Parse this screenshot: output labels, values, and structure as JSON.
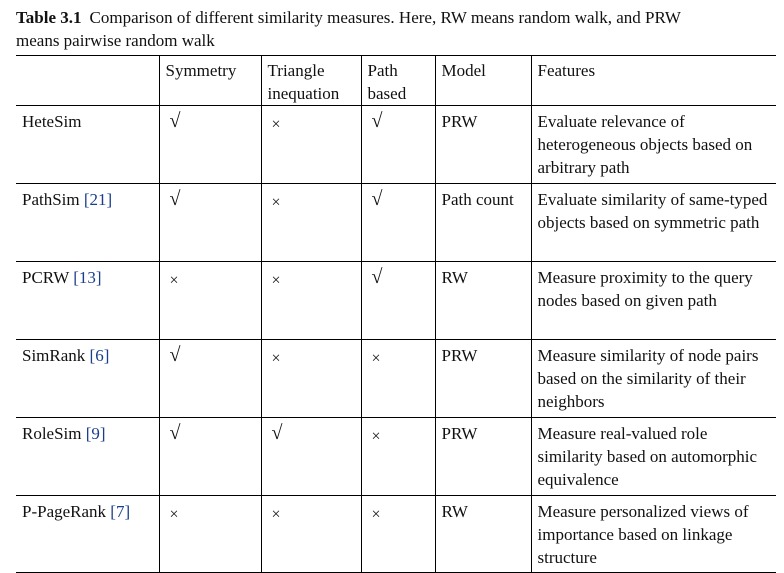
{
  "caption": {
    "label": "Table 3.1",
    "text_line1": "Comparison of different similarity measures. Here, RW means random walk, and PRW",
    "text_line2": "means pairwise random walk"
  },
  "table": {
    "headers": [
      "",
      "Symmetry",
      "Triangle inequation",
      "Path based",
      "Model",
      "Features"
    ],
    "rows": [
      {
        "name": "HeteSim",
        "ref": "",
        "symmetry": "√",
        "triangle": "×",
        "path": "√",
        "model": "PRW",
        "features": "Evaluate relevance of heterogeneous objects based on arbitrary path"
      },
      {
        "name": "PathSim ",
        "ref": "[21]",
        "symmetry": "√",
        "triangle": "×",
        "path": "√",
        "model": "Path count",
        "features": "Evaluate similarity of same-typed objects based on symmetric path"
      },
      {
        "name": "PCRW ",
        "ref": "[13]",
        "symmetry": "×",
        "triangle": "×",
        "path": "√",
        "model": "RW",
        "features": "Measure proximity to the query nodes based on given path"
      },
      {
        "name": "SimRank ",
        "ref": "[6]",
        "symmetry": "√",
        "triangle": "×",
        "path": "×",
        "model": "PRW",
        "features": "Measure similarity of node pairs based on the similarity of their neighbors"
      },
      {
        "name": "RoleSim ",
        "ref": "[9]",
        "symmetry": "√",
        "triangle": "√",
        "path": "×",
        "model": "PRW",
        "features": "Measure real-valued role similarity based on automorphic equivalence"
      },
      {
        "name": "P-PageRank ",
        "ref": "[7]",
        "symmetry": "×",
        "triangle": "×",
        "path": "×",
        "model": "RW",
        "features": "Measure personalized views of importance based on linkage structure"
      }
    ]
  }
}
